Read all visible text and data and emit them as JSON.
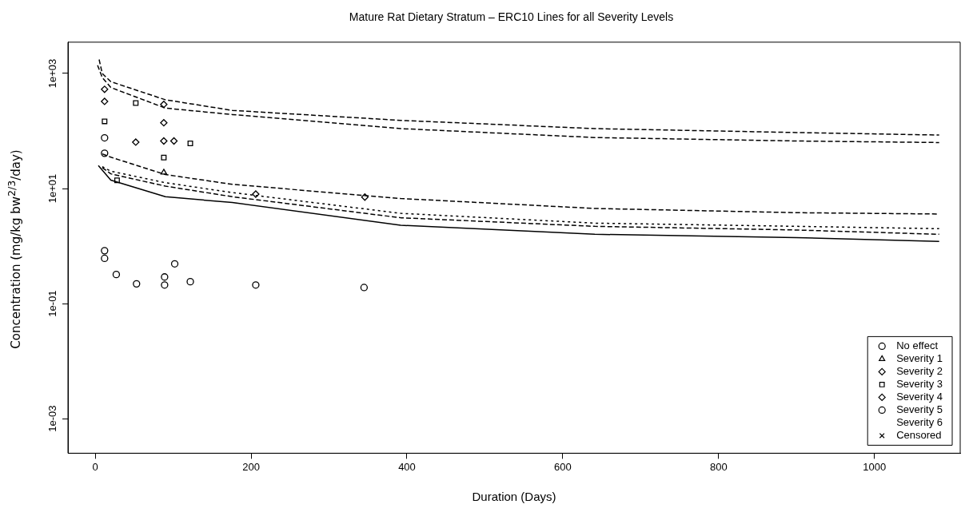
{
  "chart_data": {
    "type": "scatter",
    "title": "Mature Rat Dietary Stratum – ERC10 Lines for all Severity Levels",
    "xlabel": "Duration (Days)",
    "ylabel": "Concentration (mg/kg bw$^{2/3}$/day)",
    "log": "y",
    "grid": false,
    "legend": "bottom right",
    "xlim": [
      -35,
      1110
    ],
    "xticks": [
      0,
      200,
      400,
      600,
      800,
      1000
    ],
    "ylim": [
      0.00025,
      3500
    ],
    "yticks": [
      {
        "value": 0.001,
        "label": "1e-03"
      },
      {
        "value": 0.1,
        "label": "1e-01"
      },
      {
        "value": 10,
        "label": "1e+01"
      },
      {
        "value": 1000,
        "label": "1e+03"
      }
    ],
    "series": [
      {
        "type": "line",
        "color": "#000000",
        "line_style": "dashed",
        "marker": "none",
        "x": [
          5,
          9,
          20,
          90,
          176,
          392,
          641,
          900,
          1083
        ],
        "values": [
          1750,
          1000,
          720,
          349,
          228,
          153,
          110,
          94,
          85
        ]
      },
      {
        "type": "line",
        "color": "#000000",
        "line_style": "dashed",
        "marker": "none",
        "x": [
          3,
          9,
          20,
          90,
          176,
          392,
          641,
          900,
          1083
        ],
        "values": [
          1390,
          850,
          570,
          250,
          193,
          110,
          77,
          67,
          63
        ]
      },
      {
        "type": "line",
        "color": "#000000",
        "line_style": "dashed",
        "marker": "none",
        "x": [
          9,
          20,
          90,
          176,
          392,
          641,
          900,
          1083
        ],
        "values": [
          40,
          35,
          17.5,
          11.8,
          6.7,
          4.5,
          3.8,
          3.6
        ]
      },
      {
        "type": "line",
        "color": "#000000",
        "line_style": "dotted",
        "marker": "none",
        "x": [
          9,
          20,
          90,
          176,
          392,
          641,
          900,
          1083
        ],
        "values": [
          24,
          20,
          12.6,
          8.5,
          3.7,
          2.5,
          2.2,
          2
        ]
      },
      {
        "type": "line",
        "color": "#000000",
        "line_style": "dashed",
        "marker": "none",
        "x": [
          9,
          20,
          90,
          176,
          392,
          641,
          900,
          1083
        ],
        "values": [
          23,
          18,
          11,
          7.2,
          3.1,
          2.2,
          1.9,
          1.6
        ]
      },
      {
        "type": "line",
        "color": "#000000",
        "line_style": "solid",
        "marker": "none",
        "x": [
          4,
          20,
          90,
          176,
          392,
          641,
          900,
          1083
        ],
        "values": [
          25,
          14,
          7.2,
          5.7,
          2.3,
          1.6,
          1.4,
          1.2
        ]
      },
      {
        "name": "No effect",
        "color": "#000000",
        "marker": "circle",
        "x": [
          12,
          12,
          27,
          53,
          89,
          89,
          102,
          122,
          206,
          345
        ],
        "values": [
          0.83,
          0.61,
          0.32,
          0.22,
          0.29,
          0.21,
          0.49,
          0.24,
          0.21,
          0.19
        ]
      },
      {
        "name": "Severity 1",
        "color": "#000000",
        "marker": "triangle",
        "x": [
          88
        ],
        "values": [
          19
        ]
      },
      {
        "name": "Severity 2",
        "color": "#000000",
        "marker": "diamond",
        "x": [
          101,
          206,
          346
        ],
        "values": [
          67,
          8,
          7.1
        ]
      },
      {
        "name": "Severity 3",
        "color": "#000000",
        "marker": "square",
        "x": [
          12,
          52,
          122,
          88,
          28
        ],
        "values": [
          147,
          306,
          61,
          34.5,
          13.9
        ]
      },
      {
        "name": "Severity 4",
        "color": "#000000",
        "marker": "diamond",
        "x": [
          12,
          12,
          52,
          88,
          88,
          88
        ],
        "values": [
          530,
          327,
          64,
          290,
          139,
          67
        ]
      },
      {
        "name": "Severity 5",
        "color": "#000000",
        "marker": "circle",
        "x": [
          12,
          12
        ],
        "values": [
          76,
          41
        ]
      },
      {
        "name": "Severity 6",
        "color": "#000000",
        "marker": "none"
      },
      {
        "name": "Censored",
        "color": "#000000",
        "marker": "cross"
      }
    ]
  }
}
